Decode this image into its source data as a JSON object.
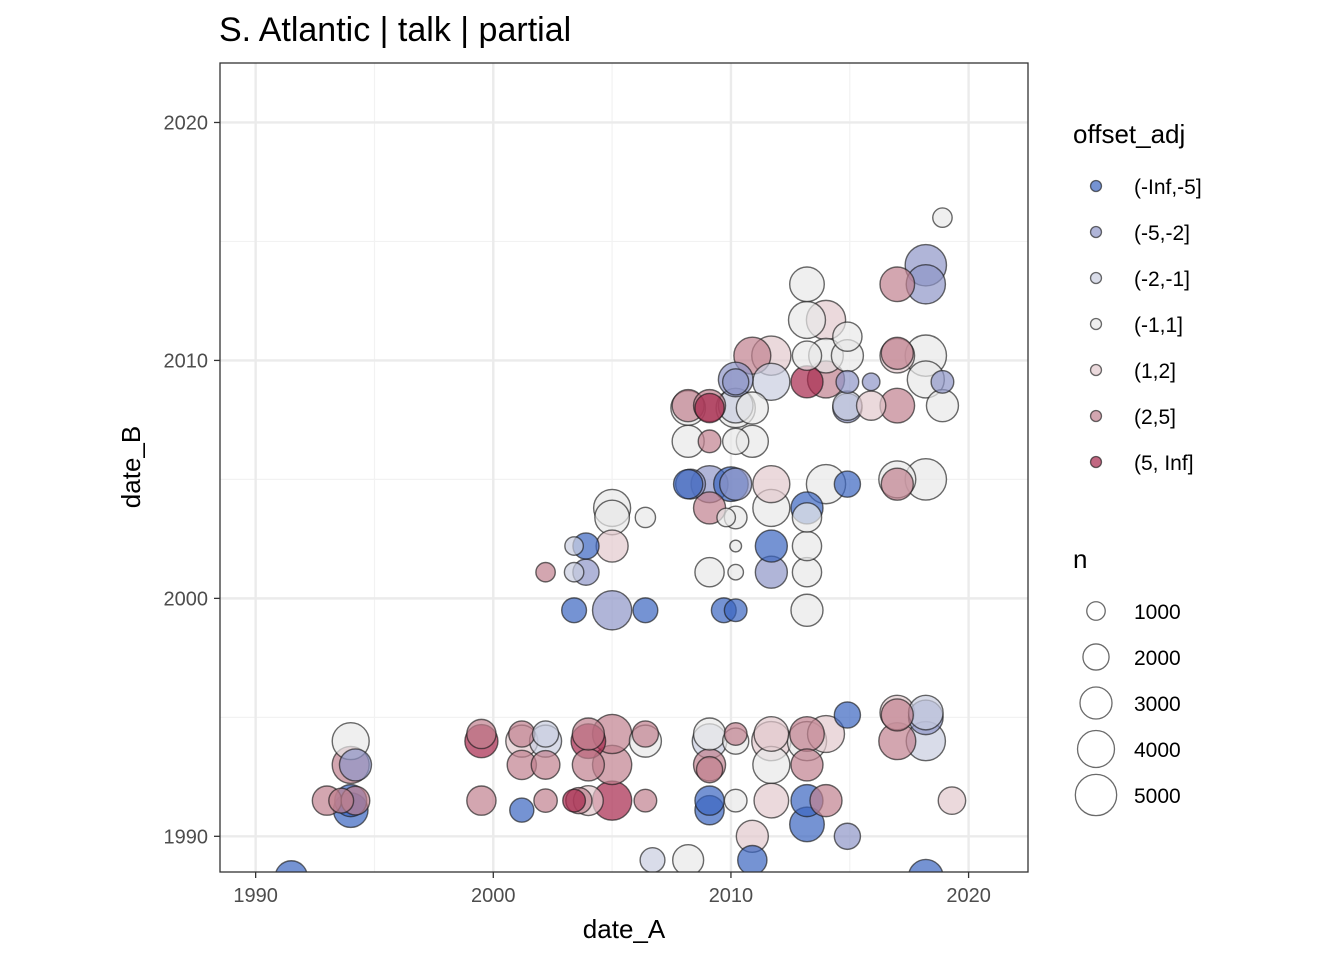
{
  "chart_data": {
    "type": "scatter",
    "title": "S. Atlantic | talk | partial",
    "xlabel": "date_A",
    "ylabel": "date_B",
    "xlim": [
      1988.5,
      2022.5
    ],
    "ylim": [
      1988.5,
      2022.5
    ],
    "x_ticks": [
      1990,
      2000,
      2010,
      2020
    ],
    "y_ticks": [
      1990,
      2000,
      2010,
      2020
    ],
    "x_tick_labels": [
      "1990",
      "2000",
      "2010",
      "2020"
    ],
    "y_tick_labels": [
      "1990",
      "2000",
      "2010",
      "2020"
    ],
    "grid": true,
    "legend_position": "right",
    "colors": {
      "(-Inf,-5]": "#3a65c0",
      "(-5,-2]": "#8e96c8",
      "(-2,-1]": "#c9cde0",
      "(-1,1]": "#e8e8e8",
      "(1,2]": "#e2c9cd",
      "(2,5]": "#c1808f",
      "(5, Inf]": "#a6264c"
    },
    "legend_color": {
      "title": "offset_adj",
      "labels": [
        "(-Inf,-5]",
        "(-5,-2]",
        "(-2,-1]",
        "(-1,1]",
        "(1,2]",
        "(2,5]",
        "(5, Inf]"
      ]
    },
    "legend_size": {
      "title": "n",
      "labels": [
        "1000",
        "2000",
        "3000",
        "4000",
        "5000"
      ],
      "values": [
        1000,
        2000,
        3000,
        4000,
        5000
      ]
    },
    "points": [
      {
        "x": 1991.5,
        "y": 1988.3,
        "n": 3000,
        "g": "(-Inf,-5]"
      },
      {
        "x": 1993.0,
        "y": 1991.5,
        "n": 2500,
        "g": "(2,5]"
      },
      {
        "x": 1993.6,
        "y": 1991.5,
        "n": 1800,
        "g": "(2,5]"
      },
      {
        "x": 1994.0,
        "y": 1991.1,
        "n": 3500,
        "g": "(-Inf,-5]"
      },
      {
        "x": 1994.0,
        "y": 1991.5,
        "n": 3000,
        "g": "(-Inf,-5]"
      },
      {
        "x": 1994.2,
        "y": 1991.5,
        "n": 2400,
        "g": "(2,5]"
      },
      {
        "x": 1994.0,
        "y": 1993.0,
        "n": 4000,
        "g": "(2,5]"
      },
      {
        "x": 1994.2,
        "y": 1993.0,
        "n": 3000,
        "g": "(-5,-2]"
      },
      {
        "x": 1994.0,
        "y": 1994.0,
        "n": 4000,
        "g": "(-1,1]"
      },
      {
        "x": 1999.5,
        "y": 1994.0,
        "n": 3200,
        "g": "(5, Inf]"
      },
      {
        "x": 1999.5,
        "y": 1994.3,
        "n": 2500,
        "g": "(2,5]"
      },
      {
        "x": 1999.5,
        "y": 1991.5,
        "n": 2500,
        "g": "(2,5]"
      },
      {
        "x": 2001.2,
        "y": 1991.1,
        "n": 1700,
        "g": "(-Inf,-5]"
      },
      {
        "x": 2001.2,
        "y": 1993.0,
        "n": 2500,
        "g": "(2,5]"
      },
      {
        "x": 2001.2,
        "y": 1994.0,
        "n": 3000,
        "g": "(1,2]"
      },
      {
        "x": 2001.2,
        "y": 1994.3,
        "n": 2000,
        "g": "(2,5]"
      },
      {
        "x": 2002.2,
        "y": 1991.5,
        "n": 1600,
        "g": "(2,5]"
      },
      {
        "x": 2002.2,
        "y": 1993.0,
        "n": 2400,
        "g": "(2,5]"
      },
      {
        "x": 2002.2,
        "y": 1994.0,
        "n": 3000,
        "g": "(-2,-1]"
      },
      {
        "x": 2002.2,
        "y": 1994.3,
        "n": 2000,
        "g": "(-2,-1]"
      },
      {
        "x": 2002.2,
        "y": 2001.1,
        "n": 1100,
        "g": "(2,5]"
      },
      {
        "x": 2003.4,
        "y": 1991.5,
        "n": 1500,
        "g": "(5, Inf]"
      },
      {
        "x": 2003.6,
        "y": 1991.5,
        "n": 2000,
        "g": "(2,5]"
      },
      {
        "x": 2003.4,
        "y": 1999.5,
        "n": 1800,
        "g": "(-Inf,-5]"
      },
      {
        "x": 2003.4,
        "y": 2001.1,
        "n": 1100,
        "g": "(-2,-1]"
      },
      {
        "x": 2003.4,
        "y": 2002.2,
        "n": 1000,
        "g": "(-2,-1]"
      },
      {
        "x": 2003.9,
        "y": 2001.1,
        "n": 2000,
        "g": "(-5,-2]"
      },
      {
        "x": 2003.9,
        "y": 2002.2,
        "n": 2000,
        "g": "(-Inf,-5]"
      },
      {
        "x": 2004.0,
        "y": 1991.5,
        "n": 2600,
        "g": "(1,2]"
      },
      {
        "x": 2004.0,
        "y": 1993.0,
        "n": 3000,
        "g": "(2,5]"
      },
      {
        "x": 2004.0,
        "y": 1994.0,
        "n": 3500,
        "g": "(5, Inf]"
      },
      {
        "x": 2004.0,
        "y": 1994.3,
        "n": 3000,
        "g": "(2,5]"
      },
      {
        "x": 2005.0,
        "y": 1991.5,
        "n": 4500,
        "g": "(5, Inf]"
      },
      {
        "x": 2005.0,
        "y": 1993.0,
        "n": 4500,
        "g": "(2,5]"
      },
      {
        "x": 2005.0,
        "y": 1994.3,
        "n": 4500,
        "g": "(2,5]"
      },
      {
        "x": 2005.0,
        "y": 1999.5,
        "n": 4500,
        "g": "(-5,-2]"
      },
      {
        "x": 2005.0,
        "y": 2002.2,
        "n": 3000,
        "g": "(1,2]"
      },
      {
        "x": 2005.0,
        "y": 2003.4,
        "n": 3500,
        "g": "(-1,1]"
      },
      {
        "x": 2005.0,
        "y": 2003.8,
        "n": 4000,
        "g": "(-1,1]"
      },
      {
        "x": 2006.4,
        "y": 1991.5,
        "n": 1500,
        "g": "(2,5]"
      },
      {
        "x": 2006.4,
        "y": 1994.0,
        "n": 3000,
        "g": "(-1,1]"
      },
      {
        "x": 2006.4,
        "y": 1994.3,
        "n": 2000,
        "g": "(2,5]"
      },
      {
        "x": 2006.4,
        "y": 1999.5,
        "n": 1800,
        "g": "(-Inf,-5]"
      },
      {
        "x": 2006.4,
        "y": 2003.4,
        "n": 1200,
        "g": "(-1,1]"
      },
      {
        "x": 2006.7,
        "y": 1989.0,
        "n": 1800,
        "g": "(-2,-1]"
      },
      {
        "x": 2008.2,
        "y": 1989.0,
        "n": 2800,
        "g": "(-1,1]"
      },
      {
        "x": 2008.2,
        "y": 2004.8,
        "n": 2500,
        "g": "(-Inf,-5]"
      },
      {
        "x": 2008.3,
        "y": 2004.8,
        "n": 2600,
        "g": "(-5,-2]"
      },
      {
        "x": 2008.2,
        "y": 2006.6,
        "n": 3000,
        "g": "(-1,1]"
      },
      {
        "x": 2008.2,
        "y": 2008.0,
        "n": 3500,
        "g": "(-1,1]"
      },
      {
        "x": 2008.2,
        "y": 2008.1,
        "n": 3000,
        "g": "(2,5]"
      },
      {
        "x": 2009.1,
        "y": 1991.1,
        "n": 2500,
        "g": "(-Inf,-5]"
      },
      {
        "x": 2009.1,
        "y": 1991.5,
        "n": 2500,
        "g": "(-Inf,-5]"
      },
      {
        "x": 2009.1,
        "y": 1992.8,
        "n": 2000,
        "g": "(2,5]"
      },
      {
        "x": 2009.1,
        "y": 1993.0,
        "n": 3000,
        "g": "(2,5]"
      },
      {
        "x": 2009.1,
        "y": 1994.0,
        "n": 3500,
        "g": "(-2,-1]"
      },
      {
        "x": 2009.1,
        "y": 1994.3,
        "n": 3000,
        "g": "(-1,1]"
      },
      {
        "x": 2009.1,
        "y": 2008.0,
        "n": 2500,
        "g": "(5, Inf]"
      },
      {
        "x": 2009.1,
        "y": 2008.1,
        "n": 3000,
        "g": "(2,5]"
      },
      {
        "x": 2009.1,
        "y": 2006.6,
        "n": 1500,
        "g": "(2,5]"
      },
      {
        "x": 2009.1,
        "y": 2004.8,
        "n": 4000,
        "g": "(-5,-2]"
      },
      {
        "x": 2009.1,
        "y": 2003.8,
        "n": 3000,
        "g": "(2,5]"
      },
      {
        "x": 2009.1,
        "y": 2001.1,
        "n": 2500,
        "g": "(-1,1]"
      },
      {
        "x": 2009.7,
        "y": 1999.5,
        "n": 1800,
        "g": "(-Inf,-5]"
      },
      {
        "x": 2010.2,
        "y": 1999.5,
        "n": 1500,
        "g": "(-Inf,-5]"
      },
      {
        "x": 2009.8,
        "y": 2003.4,
        "n": 1000,
        "g": "(-1,1]"
      },
      {
        "x": 2010.2,
        "y": 2001.1,
        "n": 700,
        "g": "(-1,1]"
      },
      {
        "x": 2010.2,
        "y": 2002.2,
        "n": 400,
        "g": "(-1,1]"
      },
      {
        "x": 2010.2,
        "y": 2003.4,
        "n": 1500,
        "g": "(-1,1]"
      },
      {
        "x": 2010.0,
        "y": 2004.8,
        "n": 3500,
        "g": "(-Inf,-5]"
      },
      {
        "x": 2010.2,
        "y": 2004.8,
        "n": 3000,
        "g": "(-5,-2]"
      },
      {
        "x": 2010.2,
        "y": 2006.6,
        "n": 2000,
        "g": "(-1,1]"
      },
      {
        "x": 2010.2,
        "y": 2008.0,
        "n": 4500,
        "g": "(-1,1]"
      },
      {
        "x": 2010.2,
        "y": 2008.1,
        "n": 3500,
        "g": "(-2,-1]"
      },
      {
        "x": 2010.2,
        "y": 2009.1,
        "n": 2000,
        "g": "(-5,-2]"
      },
      {
        "x": 2010.2,
        "y": 2009.2,
        "n": 3500,
        "g": "(-5,-2]"
      },
      {
        "x": 2010.2,
        "y": 1991.5,
        "n": 1500,
        "g": "(-1,1]"
      },
      {
        "x": 2010.2,
        "y": 1994.0,
        "n": 2000,
        "g": "(-1,1]"
      },
      {
        "x": 2010.2,
        "y": 1994.3,
        "n": 1500,
        "g": "(2,5]"
      },
      {
        "x": 2010.9,
        "y": 1989.0,
        "n": 2500,
        "g": "(-Inf,-5]"
      },
      {
        "x": 2010.9,
        "y": 1990.0,
        "n": 3000,
        "g": "(1,2]"
      },
      {
        "x": 2010.9,
        "y": 2006.6,
        "n": 3000,
        "g": "(-1,1]"
      },
      {
        "x": 2010.9,
        "y": 2008.0,
        "n": 3000,
        "g": "(-1,1]"
      },
      {
        "x": 2010.9,
        "y": 2010.2,
        "n": 4000,
        "g": "(2,5]"
      },
      {
        "x": 2011.7,
        "y": 1991.5,
        "n": 3500,
        "g": "(1,2]"
      },
      {
        "x": 2011.7,
        "y": 1993.0,
        "n": 4000,
        "g": "(-1,1]"
      },
      {
        "x": 2011.7,
        "y": 1994.0,
        "n": 4500,
        "g": "(1,2]"
      },
      {
        "x": 2011.7,
        "y": 1994.3,
        "n": 3500,
        "g": "(1,2]"
      },
      {
        "x": 2011.7,
        "y": 2001.1,
        "n": 3000,
        "g": "(-5,-2]"
      },
      {
        "x": 2011.7,
        "y": 2002.2,
        "n": 3000,
        "g": "(-Inf,-5]"
      },
      {
        "x": 2011.7,
        "y": 2003.8,
        "n": 4000,
        "g": "(-1,1]"
      },
      {
        "x": 2011.7,
        "y": 2004.8,
        "n": 4000,
        "g": "(1,2]"
      },
      {
        "x": 2011.7,
        "y": 2009.1,
        "n": 4000,
        "g": "(-2,-1]"
      },
      {
        "x": 2011.7,
        "y": 2010.2,
        "n": 4500,
        "g": "(1,2]"
      },
      {
        "x": 2013.2,
        "y": 1990.5,
        "n": 3500,
        "g": "(-Inf,-5]"
      },
      {
        "x": 2013.2,
        "y": 1991.5,
        "n": 3000,
        "g": "(-Inf,-5]"
      },
      {
        "x": 2013.2,
        "y": 1993.0,
        "n": 3000,
        "g": "(2,5]"
      },
      {
        "x": 2013.2,
        "y": 1994.0,
        "n": 4500,
        "g": "(-1,1]"
      },
      {
        "x": 2013.2,
        "y": 1994.3,
        "n": 3500,
        "g": "(2,5]"
      },
      {
        "x": 2013.2,
        "y": 1999.5,
        "n": 3000,
        "g": "(-1,1]"
      },
      {
        "x": 2013.2,
        "y": 2001.1,
        "n": 2500,
        "g": "(-1,1]"
      },
      {
        "x": 2013.2,
        "y": 2002.2,
        "n": 2500,
        "g": "(-1,1]"
      },
      {
        "x": 2013.2,
        "y": 2003.4,
        "n": 2500,
        "g": "(-1,1]"
      },
      {
        "x": 2013.2,
        "y": 2003.8,
        "n": 3000,
        "g": "(-Inf,-5]"
      },
      {
        "x": 2013.2,
        "y": 2009.1,
        "n": 3000,
        "g": "(5, Inf]"
      },
      {
        "x": 2013.2,
        "y": 2010.2,
        "n": 2500,
        "g": "(-1,1]"
      },
      {
        "x": 2013.2,
        "y": 2011.7,
        "n": 4000,
        "g": "(-1,1]"
      },
      {
        "x": 2013.2,
        "y": 2013.2,
        "n": 3500,
        "g": "(-1,1]"
      },
      {
        "x": 2014.0,
        "y": 1991.5,
        "n": 3000,
        "g": "(2,5]"
      },
      {
        "x": 2014.0,
        "y": 1994.3,
        "n": 4000,
        "g": "(1,2]"
      },
      {
        "x": 2014.0,
        "y": 2004.8,
        "n": 4500,
        "g": "(-1,1]"
      },
      {
        "x": 2014.0,
        "y": 2009.2,
        "n": 4000,
        "g": "(2,5]"
      },
      {
        "x": 2014.0,
        "y": 2010.2,
        "n": 3500,
        "g": "(-1,1]"
      },
      {
        "x": 2014.0,
        "y": 2011.7,
        "n": 4500,
        "g": "(1,2]"
      },
      {
        "x": 2014.9,
        "y": 1990.0,
        "n": 2000,
        "g": "(-5,-2]"
      },
      {
        "x": 2014.9,
        "y": 1995.1,
        "n": 2000,
        "g": "(-Inf,-5]"
      },
      {
        "x": 2014.9,
        "y": 2004.8,
        "n": 2000,
        "g": "(-Inf,-5]"
      },
      {
        "x": 2014.9,
        "y": 2008.0,
        "n": 2500,
        "g": "(-5,-2]"
      },
      {
        "x": 2014.9,
        "y": 2008.1,
        "n": 2500,
        "g": "(-2,-1]"
      },
      {
        "x": 2014.9,
        "y": 2009.1,
        "n": 1500,
        "g": "(-5,-2]"
      },
      {
        "x": 2014.9,
        "y": 2010.2,
        "n": 3000,
        "g": "(-1,1]"
      },
      {
        "x": 2014.9,
        "y": 2011.0,
        "n": 2500,
        "g": "(-1,1]"
      },
      {
        "x": 2015.9,
        "y": 2008.1,
        "n": 2500,
        "g": "(1,2]"
      },
      {
        "x": 2015.9,
        "y": 2009.1,
        "n": 900,
        "g": "(-5,-2]"
      },
      {
        "x": 2017.0,
        "y": 1994.0,
        "n": 4000,
        "g": "(2,5]"
      },
      {
        "x": 2017.0,
        "y": 1995.1,
        "n": 3000,
        "g": "(2,5]"
      },
      {
        "x": 2017.0,
        "y": 1995.2,
        "n": 3500,
        "g": "(1,2]"
      },
      {
        "x": 2017.0,
        "y": 2004.8,
        "n": 3000,
        "g": "(2,5]"
      },
      {
        "x": 2017.0,
        "y": 2005.0,
        "n": 4000,
        "g": "(-1,1]"
      },
      {
        "x": 2017.0,
        "y": 2008.1,
        "n": 3500,
        "g": "(2,5]"
      },
      {
        "x": 2017.0,
        "y": 2010.2,
        "n": 3500,
        "g": "(1,2]"
      },
      {
        "x": 2017.0,
        "y": 2010.3,
        "n": 3000,
        "g": "(2,5]"
      },
      {
        "x": 2017.0,
        "y": 2013.2,
        "n": 3500,
        "g": "(2,5]"
      },
      {
        "x": 2018.2,
        "y": 1988.3,
        "n": 3500,
        "g": "(-Inf,-5]"
      },
      {
        "x": 2018.2,
        "y": 1994.0,
        "n": 4500,
        "g": "(-2,-1]"
      },
      {
        "x": 2018.2,
        "y": 1995.0,
        "n": 3500,
        "g": "(-5,-2]"
      },
      {
        "x": 2018.2,
        "y": 1995.2,
        "n": 3500,
        "g": "(-2,-1]"
      },
      {
        "x": 2018.2,
        "y": 2005.0,
        "n": 5000,
        "g": "(-1,1]"
      },
      {
        "x": 2018.2,
        "y": 2009.2,
        "n": 4000,
        "g": "(-1,1]"
      },
      {
        "x": 2018.2,
        "y": 2010.2,
        "n": 5000,
        "g": "(-1,1]"
      },
      {
        "x": 2018.2,
        "y": 2013.2,
        "n": 4500,
        "g": "(-5,-2]"
      },
      {
        "x": 2018.2,
        "y": 2014.0,
        "n": 5000,
        "g": "(-5,-2]"
      },
      {
        "x": 2018.9,
        "y": 2008.1,
        "n": 3000,
        "g": "(-1,1]"
      },
      {
        "x": 2018.9,
        "y": 2009.1,
        "n": 1500,
        "g": "(-5,-2]"
      },
      {
        "x": 2018.9,
        "y": 2016.0,
        "n": 1100,
        "g": "(-1,1]"
      },
      {
        "x": 2019.3,
        "y": 1991.5,
        "n": 2200,
        "g": "(1,2]"
      }
    ]
  }
}
